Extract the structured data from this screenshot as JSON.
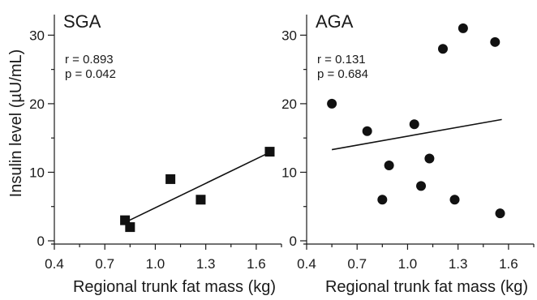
{
  "ylabel": "Insulin level (µU/mL)",
  "chart_data": [
    {
      "type": "scatter",
      "title": "SGA",
      "xlabel": "Regional trunk fat mass (kg)",
      "ylabel": "Insulin level (µU/mL)",
      "xlim": [
        0.4,
        1.75
      ],
      "ylim": [
        0,
        33
      ],
      "xticks": [
        0.4,
        0.7,
        1.0,
        1.3,
        1.6
      ],
      "xtick_labels": [
        "0.4",
        "0.7",
        "1.0",
        "1.3",
        "1.6"
      ],
      "yticks": [
        0,
        10,
        20,
        30
      ],
      "ytick_labels": [
        "0",
        "10",
        "20",
        "30"
      ],
      "marker": "square",
      "points": [
        {
          "x": 0.82,
          "y": 3
        },
        {
          "x": 0.85,
          "y": 2
        },
        {
          "x": 1.09,
          "y": 9
        },
        {
          "x": 1.27,
          "y": 6
        },
        {
          "x": 1.68,
          "y": 13
        }
      ],
      "fit_line": {
        "x": [
          0.83,
          1.68
        ],
        "y": [
          2.8,
          12.9
        ]
      },
      "stats": {
        "r": "r = 0.893",
        "p": "p = 0.042"
      },
      "grid": false
    },
    {
      "type": "scatter",
      "title": "AGA",
      "xlabel": "Regional trunk fat mass (kg)",
      "ylabel": "",
      "xlim": [
        0.4,
        1.75
      ],
      "ylim": [
        0,
        33
      ],
      "xticks": [
        0.4,
        0.7,
        1.0,
        1.3,
        1.6
      ],
      "xtick_labels": [
        "0.4",
        "0.7",
        "1.0",
        "1.3",
        "1.6"
      ],
      "yticks": [
        0,
        10,
        20,
        30
      ],
      "ytick_labels": [
        "0",
        "10",
        "20",
        "30"
      ],
      "marker": "circle",
      "points": [
        {
          "x": 0.55,
          "y": 20
        },
        {
          "x": 0.76,
          "y": 16
        },
        {
          "x": 0.85,
          "y": 6
        },
        {
          "x": 0.89,
          "y": 11
        },
        {
          "x": 1.04,
          "y": 17
        },
        {
          "x": 1.08,
          "y": 8
        },
        {
          "x": 1.13,
          "y": 12
        },
        {
          "x": 1.21,
          "y": 28
        },
        {
          "x": 1.28,
          "y": 6
        },
        {
          "x": 1.33,
          "y": 31
        },
        {
          "x": 1.52,
          "y": 29
        },
        {
          "x": 1.55,
          "y": 4
        }
      ],
      "fit_line": {
        "x": [
          0.55,
          1.56
        ],
        "y": [
          13.3,
          17.7
        ]
      },
      "stats": {
        "r": "r = 0.131",
        "p": "p = 0.684"
      },
      "grid": false
    }
  ]
}
